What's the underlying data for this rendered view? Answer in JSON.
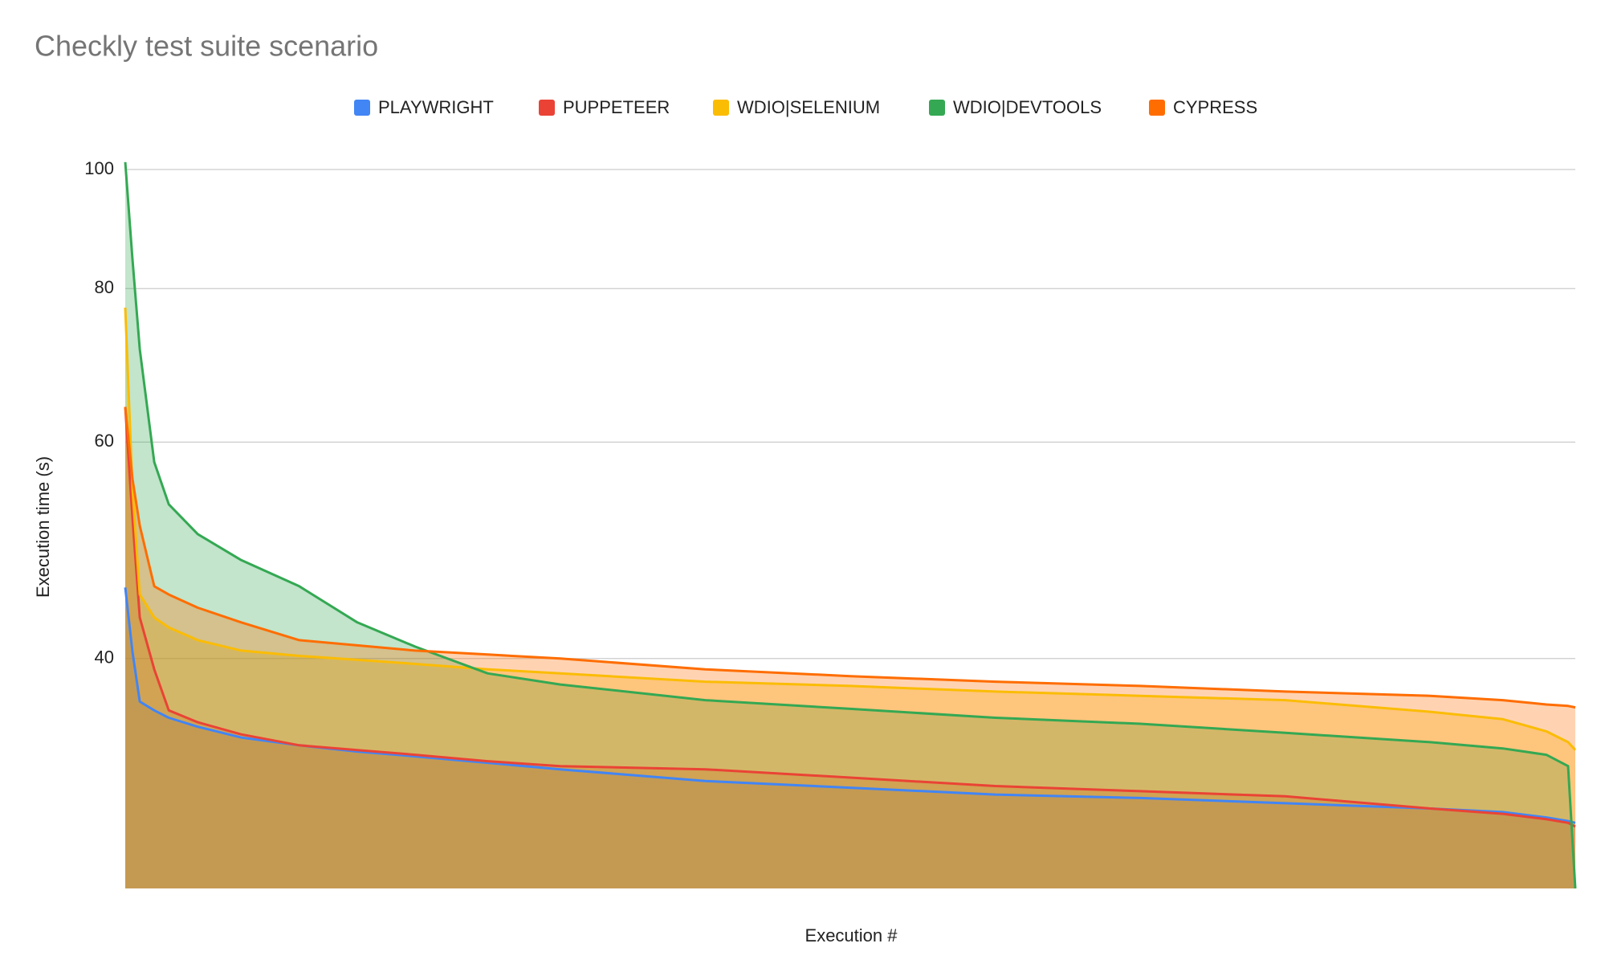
{
  "chart_data": {
    "type": "area",
    "title": "Checkly test suite scenario",
    "x_label": "Execution #",
    "y_label": "Execution time (s)",
    "x": [
      0,
      0.5,
      1,
      2,
      3,
      5,
      8,
      12,
      16,
      20,
      25,
      30,
      40,
      50,
      60,
      70,
      80,
      90,
      95,
      98,
      99.5,
      100
    ],
    "xlim": [
      0,
      100
    ],
    "ylim": [
      26,
      100
    ],
    "yticks": [
      40,
      60,
      80,
      100
    ],
    "log_scale": true,
    "grid": true,
    "legend": "top",
    "series": [
      {
        "name": "PLAYWRIGHT",
        "color": "#4285f4",
        "values": [
          45.7,
          40.5,
          36.9,
          36.3,
          35.8,
          35.2,
          34.5,
          34.0,
          33.6,
          33.3,
          32.9,
          32.5,
          31.8,
          31.4,
          31.0,
          30.8,
          30.5,
          30.2,
          30.0,
          29.7,
          29.5,
          29.4
        ]
      },
      {
        "name": "PUPPETEER",
        "color": "#ea4335",
        "values": [
          64.1,
          52,
          43.2,
          39.2,
          36.3,
          35.5,
          34.7,
          34.0,
          33.7,
          33.4,
          33.0,
          32.7,
          32.5,
          32.0,
          31.5,
          31.2,
          30.9,
          30.2,
          29.9,
          29.6,
          29.4,
          29.2
        ]
      },
      {
        "name": "WDIO|SELENIUM",
        "color": "#fbbc04",
        "values": [
          77.2,
          55,
          45.1,
          43.2,
          42.4,
          41.4,
          40.6,
          40.2,
          39.9,
          39.6,
          39.2,
          38.9,
          38.3,
          38.0,
          37.6,
          37.3,
          37.0,
          36.2,
          35.7,
          34.9,
          34.2,
          33.7
        ]
      },
      {
        "name": "WDIO|DEVTOOLS",
        "color": "#34a853",
        "values": [
          101.4,
          84.5,
          71.4,
          57.8,
          53.4,
          50.5,
          48.1,
          45.8,
          42.8,
          40.9,
          38.9,
          38.1,
          37.0,
          36.4,
          35.8,
          35.4,
          34.8,
          34.2,
          33.8,
          33.4,
          32.7,
          26
        ]
      },
      {
        "name": "CYPRESS",
        "color": "#ff6d01",
        "values": [
          64.1,
          56,
          51.3,
          45.8,
          45.1,
          44.0,
          42.8,
          41.4,
          41.0,
          40.6,
          40.3,
          40.0,
          39.2,
          38.7,
          38.3,
          38.0,
          37.6,
          37.3,
          37.0,
          36.7,
          36.6,
          36.5
        ]
      }
    ]
  }
}
